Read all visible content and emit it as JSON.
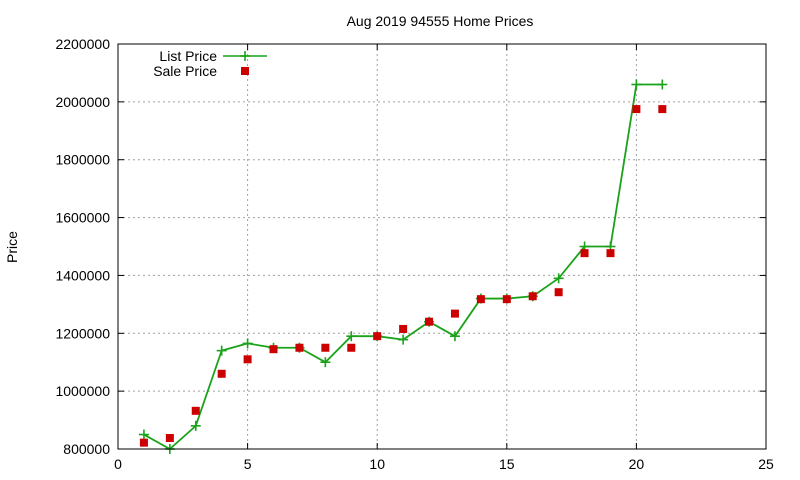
{
  "chart_data": {
    "type": "line",
    "title": "Aug 2019 94555 Home Prices",
    "xlabel": "",
    "ylabel": "Price",
    "xlim": [
      0,
      25
    ],
    "ylim": [
      800000,
      2200000
    ],
    "xticks": [
      0,
      5,
      10,
      15,
      20,
      25
    ],
    "yticks": [
      800000,
      1000000,
      1200000,
      1400000,
      1600000,
      1800000,
      2000000,
      2200000
    ],
    "grid": true,
    "legend_position": "top-left",
    "series": [
      {
        "name": "List Price",
        "style": "line+cross",
        "color": "#1aa31a",
        "x": [
          1,
          2,
          3,
          4,
          5,
          6,
          7,
          8,
          9,
          10,
          11,
          12,
          13,
          14,
          15,
          16,
          17,
          18,
          19,
          20,
          21
        ],
        "y": [
          850000,
          800000,
          880000,
          1140000,
          1165000,
          1150000,
          1150000,
          1100000,
          1190000,
          1190000,
          1178000,
          1240000,
          1190000,
          1320000,
          1320000,
          1328000,
          1390000,
          1500000,
          1500000,
          2060000,
          2060000
        ]
      },
      {
        "name": "Sale Price",
        "style": "square",
        "color": "#cc0000",
        "x": [
          1,
          2,
          3,
          4,
          5,
          6,
          7,
          8,
          9,
          10,
          11,
          12,
          13,
          14,
          15,
          16,
          17,
          18,
          19,
          20,
          21
        ],
        "y": [
          822000,
          838000,
          932000,
          1060000,
          1110000,
          1145000,
          1150000,
          1150000,
          1150000,
          1190000,
          1215000,
          1240000,
          1268000,
          1318000,
          1318000,
          1328000,
          1342000,
          1477000,
          1477000,
          1975000,
          1975000
        ]
      }
    ]
  }
}
